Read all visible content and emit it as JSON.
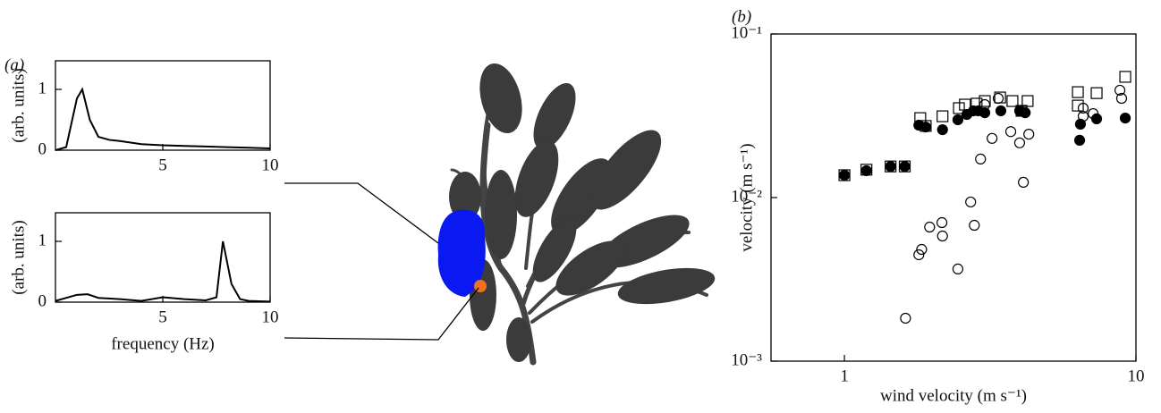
{
  "chart_data": [
    {
      "type": "line",
      "panel_label": "(a)",
      "ylabel": "(arb. units)",
      "x": [
        0,
        0.5,
        1,
        1.25,
        1.6,
        2,
        2.5,
        3,
        4,
        5,
        6,
        7,
        8,
        9,
        10
      ],
      "series": [
        {
          "color": "#000000",
          "values": [
            0,
            0.05,
            0.85,
            1.0,
            0.5,
            0.22,
            0.17,
            0.15,
            0.1,
            0.08,
            0.07,
            0.06,
            0.05,
            0.04,
            0.03
          ]
        }
      ],
      "xlim": [
        0,
        10
      ],
      "xticks": [
        5,
        10
      ],
      "ylim": [
        0,
        1.47
      ],
      "yticks": [
        0,
        1
      ]
    },
    {
      "type": "line",
      "ylabel": "(arb. units)",
      "xlabel": "frequency (Hz)",
      "x": [
        0,
        1,
        1.5,
        2,
        3,
        4,
        5,
        6,
        7,
        7.5,
        7.8,
        8.2,
        8.6,
        9,
        10
      ],
      "series": [
        {
          "color": "#000000",
          "values": [
            0.02,
            0.12,
            0.13,
            0.07,
            0.05,
            0.02,
            0.08,
            0.05,
            0.03,
            0.08,
            1.0,
            0.3,
            0.05,
            0.02,
            0.01
          ]
        }
      ],
      "xlim": [
        0,
        10
      ],
      "xticks": [
        5,
        10
      ],
      "ylim": [
        0,
        1.47
      ],
      "yticks": [
        0,
        1
      ]
    },
    {
      "type": "scatter",
      "panel_label": "(b)",
      "xlabel": "wind velocity (m s⁻¹)",
      "ylabel": "velocity (m s⁻¹)",
      "xscale": "log",
      "yscale": "log",
      "xlim": [
        0.56,
        10
      ],
      "xticks": [
        1,
        10
      ],
      "ylim": [
        0.001,
        0.1
      ],
      "yticks": [
        {
          "value": 0.1,
          "label": "10⁻¹"
        },
        {
          "value": 0.01,
          "label": "10⁻²"
        },
        {
          "value": 0.001,
          "label": "10⁻³"
        }
      ],
      "series": [
        {
          "marker": "square",
          "filled": false,
          "color": "#000000",
          "x": [
            1,
            1.19,
            1.44,
            1.61,
            1.82,
            1.9,
            2.17,
            2.47,
            2.59,
            2.84,
            3.03,
            3.42,
            3.77,
            4.05,
            4.25,
            6.32,
            6.32,
            7.33,
            9.19
          ],
          "values": [
            0.0137,
            0.0148,
            0.0155,
            0.0155,
            0.0306,
            0.0274,
            0.0314,
            0.0352,
            0.037,
            0.0375,
            0.0389,
            0.0409,
            0.0389,
            0.0339,
            0.0389,
            0.0365,
            0.0441,
            0.0435,
            0.0547
          ]
        },
        {
          "marker": "circle",
          "filled": true,
          "color": "#000000",
          "x": [
            1,
            1.19,
            1.44,
            1.61,
            1.8,
            1.9,
            2.17,
            2.45,
            2.63,
            2.77,
            2.88,
            3.03,
            3.44,
            3.99,
            4.17,
            6.41,
            6.45,
            7.33,
            9.19
          ],
          "values": [
            0.0137,
            0.0146,
            0.0155,
            0.0155,
            0.0277,
            0.027,
            0.026,
            0.0299,
            0.0322,
            0.0339,
            0.0339,
            0.033,
            0.0339,
            0.0339,
            0.033,
            0.0224,
            0.0281,
            0.0303,
            0.0306
          ]
        },
        {
          "marker": "circle",
          "filled": false,
          "color": "#000000",
          "x": [
            1.62,
            1.8,
            1.84,
            1.96,
            2.16,
            2.17,
            2.45,
            2.71,
            2.79,
            2.93,
            3.03,
            3.21,
            3.37,
            3.72,
            3.99,
            4.11,
            4.29,
            6.59,
            6.59,
            7.13,
            8.81,
            8.93
          ],
          "values": [
            0.00183,
            0.00447,
            0.00482,
            0.0066,
            0.00703,
            0.00582,
            0.00366,
            0.0094,
            0.00677,
            0.0172,
            0.037,
            0.023,
            0.0404,
            0.0253,
            0.0216,
            0.0124,
            0.0244,
            0.0352,
            0.0314,
            0.0326,
            0.0453,
            0.0404
          ]
        }
      ]
    }
  ]
}
